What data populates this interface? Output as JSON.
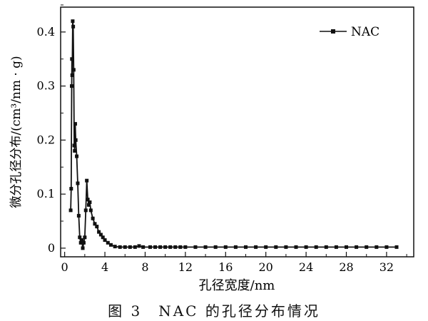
{
  "chart_data": {
    "type": "line",
    "title": "",
    "xlabel": "孔径宽度/nm",
    "ylabel": "微分孔径分布/(cm³/nm · g)",
    "xlim": [
      -0.4,
      34.7
    ],
    "ylim": [
      -0.016,
      0.446
    ],
    "xticks": [
      0,
      4,
      8,
      12,
      16,
      20,
      24,
      28,
      32
    ],
    "yticks": [
      0,
      0.1,
      0.2,
      0.3,
      0.4
    ],
    "ytick_labels": [
      "0",
      "0.1",
      "0.2",
      "0.3",
      "0.4"
    ],
    "grid": false,
    "legend_position": "top-right",
    "series": [
      {
        "name": "NAC",
        "color": "#111111",
        "marker": "square",
        "x": [
          0.6,
          0.65,
          0.7,
          0.72,
          0.75,
          0.8,
          0.85,
          0.9,
          0.95,
          1.0,
          1.05,
          1.1,
          1.2,
          1.3,
          1.4,
          1.5,
          1.6,
          1.7,
          1.8,
          1.9,
          2.0,
          2.1,
          2.2,
          2.3,
          2.4,
          2.5,
          2.6,
          2.8,
          3.0,
          3.2,
          3.4,
          3.6,
          3.8,
          4.0,
          4.3,
          4.6,
          5.0,
          5.5,
          6.0,
          6.5,
          7.0,
          7.4,
          7.8,
          8.5,
          9,
          9.5,
          10,
          10.5,
          11,
          11.5,
          12,
          13,
          14,
          15,
          16,
          17,
          18,
          19,
          20,
          21,
          22,
          23,
          24,
          25,
          26,
          27,
          28,
          29,
          30,
          31,
          32,
          33
        ],
        "y": [
          0.07,
          0.11,
          0.3,
          0.35,
          0.32,
          0.42,
          0.41,
          0.33,
          0.19,
          0.18,
          0.23,
          0.2,
          0.17,
          0.12,
          0.06,
          0.02,
          0.01,
          0.015,
          0.0,
          0.01,
          0.02,
          0.07,
          0.125,
          0.09,
          0.08,
          0.085,
          0.07,
          0.055,
          0.045,
          0.04,
          0.03,
          0.025,
          0.02,
          0.015,
          0.01,
          0.006,
          0.003,
          0.002,
          0.002,
          0.002,
          0.002,
          0.004,
          0.002,
          0.002,
          0.002,
          0.002,
          0.002,
          0.002,
          0.002,
          0.002,
          0.002,
          0.002,
          0.002,
          0.002,
          0.002,
          0.002,
          0.002,
          0.002,
          0.002,
          0.002,
          0.002,
          0.002,
          0.002,
          0.002,
          0.002,
          0.002,
          0.002,
          0.002,
          0.002,
          0.002,
          0.002,
          0.002
        ]
      }
    ]
  },
  "caption": "图 3　NAC 的孔径分布情况"
}
